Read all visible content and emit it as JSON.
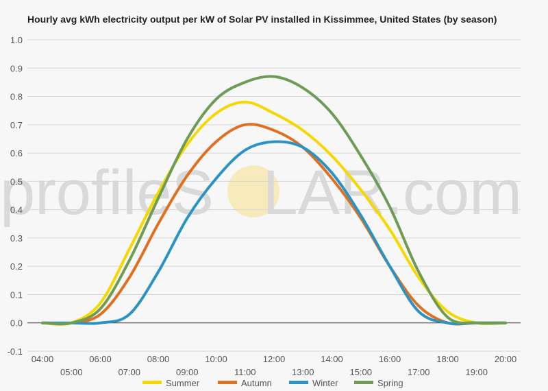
{
  "chart_data": {
    "type": "line",
    "title": "Hourly avg kWh electricity output per kW of Solar PV installed in Kissimmee, United States (by season)",
    "xlabel": "",
    "ylabel": "",
    "ylim": [
      -0.1,
      1.0
    ],
    "yticks": [
      "-0.1",
      "0.0",
      "0.1",
      "0.2",
      "0.3",
      "0.4",
      "0.5",
      "0.6",
      "0.7",
      "0.8",
      "0.9",
      "1.0"
    ],
    "x": [
      "04:00",
      "05:00",
      "06:00",
      "07:00",
      "08:00",
      "09:00",
      "10:00",
      "11:00",
      "12:00",
      "13:00",
      "14:00",
      "15:00",
      "16:00",
      "17:00",
      "18:00",
      "19:00",
      "20:00"
    ],
    "grid": true,
    "legend_position": "bottom",
    "series": [
      {
        "name": "Summer",
        "color": "#f5d800",
        "values": [
          0.0,
          0.0,
          0.07,
          0.26,
          0.46,
          0.63,
          0.74,
          0.78,
          0.74,
          0.68,
          0.59,
          0.47,
          0.33,
          0.16,
          0.04,
          0.0,
          0.0
        ]
      },
      {
        "name": "Autumn",
        "color": "#e07020",
        "values": [
          0.0,
          0.0,
          0.03,
          0.16,
          0.35,
          0.52,
          0.64,
          0.7,
          0.68,
          0.62,
          0.51,
          0.37,
          0.2,
          0.06,
          0.0,
          0.0,
          0.0
        ]
      },
      {
        "name": "Winter",
        "color": "#2a93c4",
        "values": [
          0.0,
          0.0,
          0.0,
          0.03,
          0.18,
          0.37,
          0.51,
          0.61,
          0.64,
          0.62,
          0.53,
          0.38,
          0.2,
          0.04,
          0.0,
          0.0,
          0.0
        ]
      },
      {
        "name": "Spring",
        "color": "#6e9c56",
        "values": [
          0.0,
          0.0,
          0.05,
          0.22,
          0.44,
          0.65,
          0.79,
          0.85,
          0.87,
          0.83,
          0.74,
          0.59,
          0.41,
          0.18,
          0.02,
          0.0,
          0.0
        ]
      }
    ]
  },
  "watermark": {
    "prefix": "profile",
    "s": "S",
    "o": "O",
    "suffix": "LAR.com"
  }
}
